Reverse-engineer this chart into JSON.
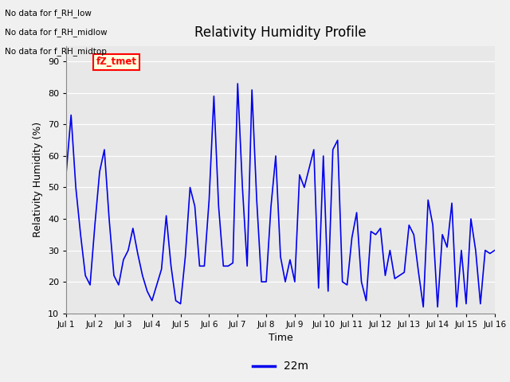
{
  "title": "Relativity Humidity Profile",
  "xlabel": "Time",
  "ylabel": "Relativity Humidity (%)",
  "ylim": [
    10,
    95
  ],
  "yticks": [
    10,
    20,
    30,
    40,
    50,
    60,
    70,
    80,
    90
  ],
  "line_color": "#0000EE",
  "line_width": 1.2,
  "bg_color": "#E8E8E8",
  "fig_color": "#F0F0F0",
  "legend_label": "22m",
  "legend_line_color": "#0000EE",
  "no_data_texts": [
    "No data for f_RH_low",
    "No data for f_RH_midlow",
    "No data for f_RH_midtop"
  ],
  "fz_tmet_label": "fZ_tmet",
  "xtick_labels": [
    "Jul 1",
    "Jul 2",
    "Jul 3",
    "Jul 4",
    "Jul 5",
    "Jul 6",
    "Jul 7",
    "Jul 8",
    "Jul 9",
    "Jul 10",
    "Jul 11",
    "Jul 12",
    "Jul 13",
    "Jul 14",
    "Jul 15",
    "Jul 16"
  ],
  "x_values": [
    0,
    0.167,
    0.333,
    0.5,
    0.667,
    0.833,
    1.0,
    1.167,
    1.333,
    1.5,
    1.667,
    1.833,
    2.0,
    2.167,
    2.333,
    2.5,
    2.667,
    2.833,
    3.0,
    3.167,
    3.333,
    3.5,
    3.667,
    3.833,
    4.0,
    4.167,
    4.333,
    4.5,
    4.667,
    4.833,
    5.0,
    5.167,
    5.333,
    5.5,
    5.667,
    5.833,
    6.0,
    6.167,
    6.333,
    6.5,
    6.667,
    6.833,
    7.0,
    7.167,
    7.333,
    7.5,
    7.667,
    7.833,
    8.0,
    8.167,
    8.333,
    8.5,
    8.667,
    8.833,
    9.0,
    9.167,
    9.333,
    9.5,
    9.667,
    9.833,
    10.0,
    10.167,
    10.333,
    10.5,
    10.667,
    10.833,
    11.0,
    11.167,
    11.333,
    11.5,
    11.667,
    11.833,
    12.0,
    12.167,
    12.333,
    12.5,
    12.667,
    12.833,
    13.0,
    13.167,
    13.333,
    13.5,
    13.667,
    13.833,
    14.0,
    14.167,
    14.333,
    14.5,
    14.667,
    14.833,
    15.0
  ],
  "y_values": [
    55,
    73,
    50,
    35,
    22,
    19,
    38,
    55,
    62,
    40,
    22,
    19,
    27,
    30,
    37,
    29,
    22,
    17,
    14,
    19,
    24,
    41,
    25,
    14,
    13,
    28,
    50,
    44,
    25,
    25,
    46,
    79,
    44,
    25,
    25,
    26,
    83,
    50,
    25,
    81,
    46,
    20,
    20,
    44,
    60,
    28,
    20,
    27,
    20,
    54,
    50,
    56,
    62,
    18,
    60,
    17,
    62,
    65,
    20,
    19,
    34,
    42,
    20,
    14,
    36,
    35,
    37,
    22,
    30,
    21,
    22,
    23,
    38,
    35,
    23,
    12,
    46,
    38,
    12,
    35,
    31,
    45,
    12,
    30,
    13,
    40,
    30,
    13,
    30,
    29,
    30
  ]
}
